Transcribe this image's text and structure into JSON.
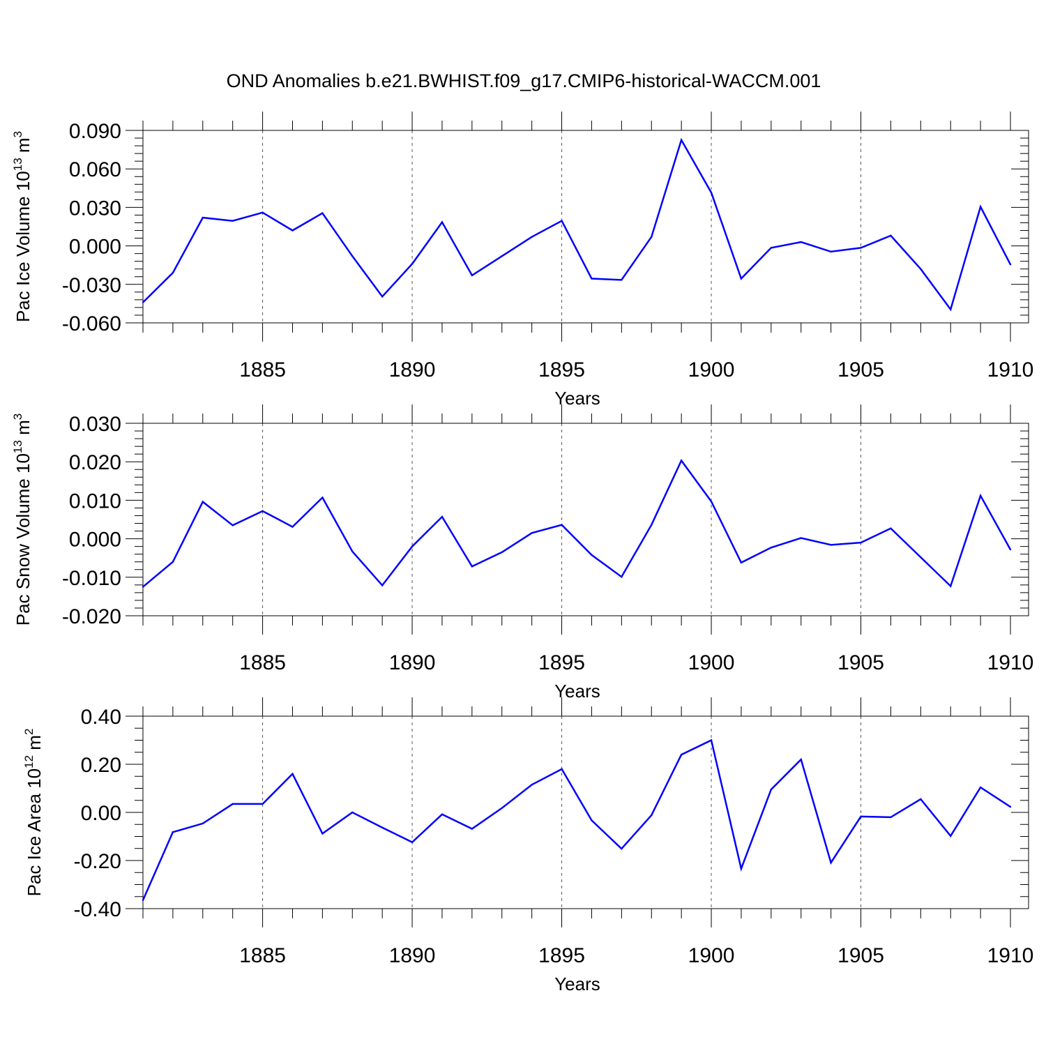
{
  "title": "OND Anomalies b.e21.BWHIST.f09_g17.CMIP6-historical-WACCM.001",
  "colors": {
    "series": "#0000ff",
    "axis": "#000000",
    "grid": "#555555"
  },
  "chart_data": [
    {
      "type": "line",
      "ylabel": {
        "main": "Pac Ice Volume 10",
        "exp": "13",
        "unit": " m",
        "unit_exp": "3"
      },
      "xlabel": "Years",
      "xlim": [
        1881,
        1910
      ],
      "ylim": [
        -0.06,
        0.09
      ],
      "yticks": [
        -0.06,
        -0.03,
        0.0,
        0.03,
        0.06,
        0.09
      ],
      "ytick_labels": [
        "-0.060",
        "-0.030",
        "0.000",
        "0.030",
        "0.060",
        "0.090"
      ],
      "xticks": [
        1885,
        1890,
        1895,
        1900,
        1905,
        1910
      ],
      "xtick_labels": [
        "1885",
        "1890",
        "1895",
        "1900",
        "1905",
        "1910"
      ],
      "vgrid": [
        1885,
        1890,
        1895,
        1900,
        1905
      ],
      "x": [
        1881,
        1882,
        1883,
        1884,
        1885,
        1886,
        1887,
        1888,
        1889,
        1890,
        1891,
        1892,
        1893,
        1894,
        1895,
        1896,
        1897,
        1898,
        1899,
        1900,
        1901,
        1902,
        1903,
        1904,
        1905,
        1906,
        1907,
        1908,
        1909,
        1910
      ],
      "values": [
        -0.044,
        -0.021,
        0.022,
        0.0195,
        0.026,
        0.012,
        0.0255,
        -0.008,
        -0.0395,
        -0.014,
        0.0185,
        -0.023,
        -0.008,
        0.007,
        0.0195,
        -0.0255,
        -0.0265,
        0.007,
        0.0825,
        0.0415,
        -0.0255,
        -0.0015,
        0.003,
        -0.0045,
        -0.0015,
        0.008,
        -0.018,
        -0.0495,
        0.0305,
        -0.0145
      ]
    },
    {
      "type": "line",
      "ylabel": {
        "main": "Pac Snow Volume 10",
        "exp": "13",
        "unit": " m",
        "unit_exp": "3"
      },
      "xlabel": "Years",
      "xlim": [
        1881,
        1910
      ],
      "ylim": [
        -0.02,
        0.03
      ],
      "yticks": [
        -0.02,
        -0.01,
        0.0,
        0.01,
        0.02,
        0.03
      ],
      "ytick_labels": [
        "-0.020",
        "-0.010",
        "0.000",
        "0.010",
        "0.020",
        "0.030"
      ],
      "xticks": [
        1885,
        1890,
        1895,
        1900,
        1905,
        1910
      ],
      "xtick_labels": [
        "1885",
        "1890",
        "1895",
        "1900",
        "1905",
        "1910"
      ],
      "vgrid": [
        1885,
        1890,
        1895,
        1900,
        1905
      ],
      "x": [
        1881,
        1882,
        1883,
        1884,
        1885,
        1886,
        1887,
        1888,
        1889,
        1890,
        1891,
        1892,
        1893,
        1894,
        1895,
        1896,
        1897,
        1898,
        1899,
        1900,
        1901,
        1902,
        1903,
        1904,
        1905,
        1906,
        1907,
        1908,
        1909,
        1910
      ],
      "values": [
        -0.0125,
        -0.006,
        0.0096,
        0.0035,
        0.0072,
        0.0031,
        0.0107,
        -0.0033,
        -0.0121,
        -0.002,
        0.0057,
        -0.0072,
        -0.0035,
        0.0015,
        0.0036,
        -0.0042,
        -0.0099,
        0.0036,
        0.0203,
        0.0097,
        -0.0062,
        -0.0023,
        0.0002,
        -0.0016,
        -0.001,
        0.0027,
        -0.0048,
        -0.0123,
        0.0112,
        -0.0028
      ]
    },
    {
      "type": "line",
      "ylabel": {
        "main": "Pac Ice Area 10",
        "exp": "12",
        "unit": " m",
        "unit_exp": "2"
      },
      "xlabel": "Years",
      "xlim": [
        1881,
        1910
      ],
      "ylim": [
        -0.4,
        0.4
      ],
      "yticks": [
        -0.4,
        -0.2,
        0.0,
        0.2,
        0.4
      ],
      "ytick_labels": [
        "-0.40",
        "-0.20",
        "0.00",
        "0.20",
        "0.40"
      ],
      "xticks": [
        1885,
        1890,
        1895,
        1900,
        1905,
        1910
      ],
      "xtick_labels": [
        "1885",
        "1890",
        "1895",
        "1900",
        "1905",
        "1910"
      ],
      "vgrid": [
        1885,
        1890,
        1895,
        1900,
        1905
      ],
      "x": [
        1881,
        1882,
        1883,
        1884,
        1885,
        1886,
        1887,
        1888,
        1889,
        1890,
        1891,
        1892,
        1893,
        1894,
        1895,
        1896,
        1897,
        1898,
        1899,
        1900,
        1901,
        1902,
        1903,
        1904,
        1905,
        1906,
        1907,
        1908,
        1909,
        1910
      ],
      "values": [
        -0.365,
        -0.082,
        -0.046,
        0.035,
        0.035,
        0.16,
        -0.088,
        0.0,
        -0.063,
        -0.124,
        -0.008,
        -0.068,
        0.018,
        0.115,
        0.18,
        -0.033,
        -0.151,
        -0.012,
        0.24,
        0.3,
        -0.234,
        0.095,
        0.22,
        -0.209,
        -0.017,
        -0.02,
        0.055,
        -0.098,
        0.104,
        0.023
      ]
    }
  ]
}
